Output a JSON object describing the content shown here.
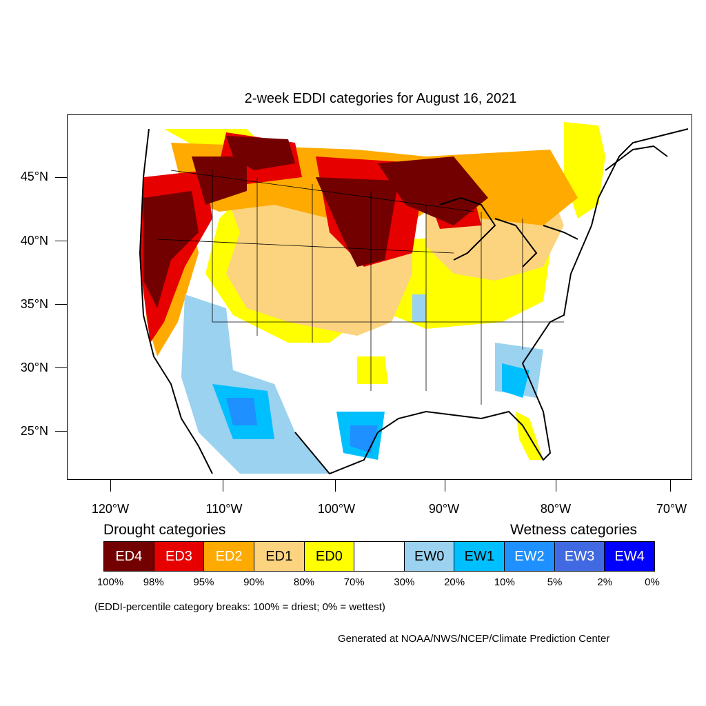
{
  "title": "2-week EDDI categories for August 16, 2021",
  "latitude_labels": [
    "45°N",
    "40°N",
    "35°N",
    "30°N",
    "25°N"
  ],
  "longitude_labels": [
    "120°W",
    "110°W",
    "100°W",
    "90°W",
    "80°W",
    "70°W"
  ],
  "legend": {
    "drought_heading": "Drought categories",
    "wetness_heading": "Wetness categories",
    "categories": [
      {
        "label": "ED4",
        "color": "#730000",
        "text_color": "#ffffff"
      },
      {
        "label": "ED3",
        "color": "#e60000",
        "text_color": "#ffffff"
      },
      {
        "label": "ED2",
        "color": "#ffaa00",
        "text_color": "#ffffff"
      },
      {
        "label": "ED1",
        "color": "#fcd37f",
        "text_color": "#000000"
      },
      {
        "label": "ED0",
        "color": "#ffff00",
        "text_color": "#000000"
      },
      {
        "label": "",
        "color": "#ffffff",
        "text_color": "#000000"
      },
      {
        "label": "EW0",
        "color": "#9ad2f0",
        "text_color": "#000000"
      },
      {
        "label": "EW1",
        "color": "#00bfff",
        "text_color": "#000000"
      },
      {
        "label": "EW2",
        "color": "#1e90ff",
        "text_color": "#ffffff"
      },
      {
        "label": "EW3",
        "color": "#4169e1",
        "text_color": "#ffffff"
      },
      {
        "label": "EW4",
        "color": "#0000ff",
        "text_color": "#ffffff"
      }
    ],
    "percent_breaks": [
      "100%",
      "98%",
      "95%",
      "90%",
      "80%",
      "70%",
      "30%",
      "20%",
      "10%",
      "5%",
      "2%",
      "0%"
    ]
  },
  "footnote": "(EDDI-percentile category breaks: 100% = driest; 0% = wettest)",
  "credit": "Generated at NOAA/NWS/NCEP/Climate Prediction Center"
}
